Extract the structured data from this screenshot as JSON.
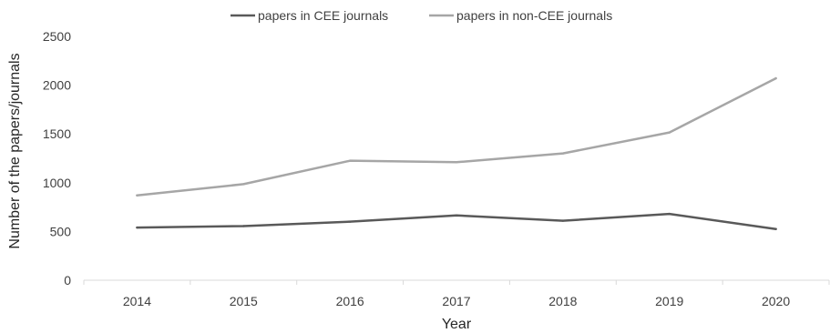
{
  "chart_data": {
    "type": "line",
    "categories": [
      "2014",
      "2015",
      "2016",
      "2017",
      "2018",
      "2019",
      "2020"
    ],
    "series": [
      {
        "name": "papers in CEE journals",
        "values": [
          540,
          555,
          600,
          665,
          610,
          680,
          525
        ],
        "color": "#595959"
      },
      {
        "name": "papers in non-CEE journals",
        "values": [
          870,
          985,
          1225,
          1210,
          1300,
          1515,
          2070
        ],
        "color": "#a6a6a6"
      }
    ],
    "xlabel": "Year",
    "ylabel": "Number of the papers/journals",
    "ylim": [
      0,
      2500
    ],
    "yticks": [
      "0",
      "500",
      "1000",
      "1500",
      "2000",
      "2500"
    ],
    "grid": false,
    "legend_position": "top"
  }
}
